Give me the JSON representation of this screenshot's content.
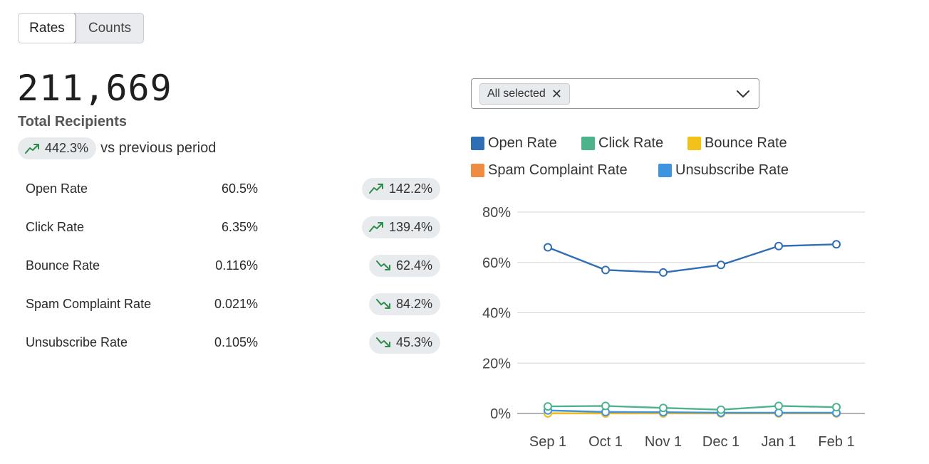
{
  "toggle": {
    "rates_label": "Rates",
    "counts_label": "Counts",
    "active": "Rates"
  },
  "summary": {
    "total_value": "211,669",
    "total_label": "Total Recipients",
    "change": "442.3%",
    "change_direction": "up",
    "vs_text": "vs previous period"
  },
  "metrics": [
    {
      "name": "Open Rate",
      "value": "60.5%",
      "change": "142.2%",
      "direction": "up"
    },
    {
      "name": "Click Rate",
      "value": "6.35%",
      "change": "139.4%",
      "direction": "up"
    },
    {
      "name": "Bounce Rate",
      "value": "0.116%",
      "change": "62.4%",
      "direction": "down"
    },
    {
      "name": "Spam Complaint Rate",
      "value": "0.021%",
      "change": "84.2%",
      "direction": "down"
    },
    {
      "name": "Unsubscribe Rate",
      "value": "0.105%",
      "change": "45.3%",
      "direction": "down"
    }
  ],
  "filter": {
    "chip_label": "All selected",
    "remove_glyph": "✕"
  },
  "colors": {
    "up": "#2e8b47",
    "down": "#2e8b47",
    "open": "#2f6db5",
    "click": "#4cb38a",
    "bounce": "#f2c21b",
    "spam": "#ee8c44",
    "unsub": "#3f94e0"
  },
  "legend": [
    {
      "label": "Open Rate",
      "color": "#2f6db5"
    },
    {
      "label": "Click Rate",
      "color": "#4cb38a"
    },
    {
      "label": "Bounce Rate",
      "color": "#f2c21b"
    },
    {
      "label": "Spam Complaint Rate",
      "color": "#ee8c44"
    },
    {
      "label": "Unsubscribe Rate",
      "color": "#3f94e0"
    }
  ],
  "chart_data": {
    "type": "line",
    "x": [
      "Sep 1",
      "Oct 1",
      "Nov 1",
      "Dec 1",
      "Jan 1",
      "Feb 1"
    ],
    "ylim": [
      0,
      80
    ],
    "yticks": [
      "0%",
      "20%",
      "40%",
      "60%",
      "80%"
    ],
    "grid": true,
    "legend_position": "top",
    "series": [
      {
        "name": "Open Rate",
        "color": "#2f6db5",
        "values": [
          66,
          57,
          56,
          59,
          66.5,
          67.2
        ]
      },
      {
        "name": "Click Rate",
        "color": "#4cb38a",
        "values": [
          2.8,
          3.0,
          2.2,
          1.5,
          3.0,
          2.5
        ]
      },
      {
        "name": "Bounce Rate",
        "color": "#f2c21b",
        "values": [
          0.12,
          0.11,
          0.12,
          0.1,
          0.12,
          0.11
        ]
      },
      {
        "name": "Spam Complaint Rate",
        "color": "#ee8c44",
        "values": [
          0.02,
          0.02,
          0.02,
          0.02,
          0.02,
          0.02
        ]
      },
      {
        "name": "Unsubscribe Rate",
        "color": "#3f94e0",
        "values": [
          1.2,
          0.6,
          0.5,
          0.3,
          0.3,
          0.3
        ]
      }
    ]
  }
}
